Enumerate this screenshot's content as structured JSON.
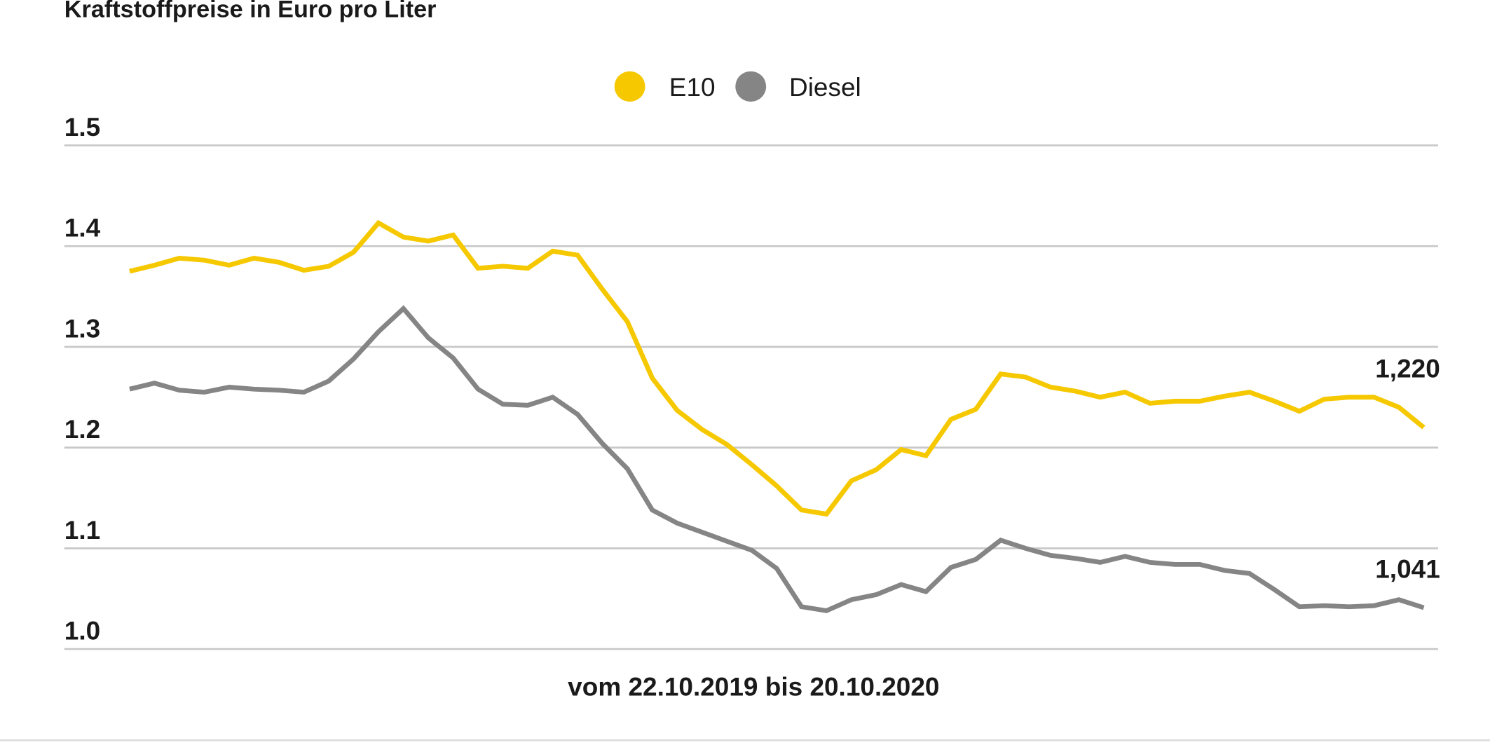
{
  "chart_data": {
    "type": "line",
    "title": "Kraftstoffpreise in Euro pro Liter",
    "xlabel": "vom 22.10.2019 bis 20.10.2020",
    "ylabel": "",
    "ylim": [
      1.0,
      1.5
    ],
    "yticks": [
      "1.5",
      "1.4",
      "1.3",
      "1.2",
      "1.1",
      "1.0"
    ],
    "grid": true,
    "legend_position": "top-center",
    "series": [
      {
        "name": "E10",
        "color": "#f5c800",
        "end_label": "1,220",
        "values": [
          1.375,
          1.381,
          1.388,
          1.386,
          1.381,
          1.388,
          1.384,
          1.376,
          1.38,
          1.394,
          1.423,
          1.409,
          1.405,
          1.411,
          1.378,
          1.38,
          1.378,
          1.395,
          1.391,
          1.357,
          1.325,
          1.269,
          1.237,
          1.218,
          1.203,
          1.183,
          1.162,
          1.138,
          1.134,
          1.167,
          1.178,
          1.198,
          1.192,
          1.228,
          1.238,
          1.273,
          1.27,
          1.26,
          1.256,
          1.25,
          1.255,
          1.244,
          1.246,
          1.246,
          1.251,
          1.255,
          1.246,
          1.236,
          1.248,
          1.25,
          1.25,
          1.24,
          1.22
        ]
      },
      {
        "name": "Diesel",
        "color": "#858585",
        "end_label": "1,041",
        "values": [
          1.258,
          1.264,
          1.257,
          1.255,
          1.26,
          1.258,
          1.257,
          1.255,
          1.266,
          1.288,
          1.315,
          1.338,
          1.309,
          1.289,
          1.258,
          1.243,
          1.242,
          1.25,
          1.233,
          1.204,
          1.179,
          1.138,
          1.125,
          1.116,
          1.107,
          1.098,
          1.08,
          1.042,
          1.038,
          1.049,
          1.054,
          1.064,
          1.057,
          1.081,
          1.089,
          1.108,
          1.1,
          1.093,
          1.09,
          1.086,
          1.092,
          1.086,
          1.084,
          1.084,
          1.078,
          1.075,
          1.059,
          1.042,
          1.043,
          1.042,
          1.043,
          1.049,
          1.041
        ]
      }
    ]
  }
}
